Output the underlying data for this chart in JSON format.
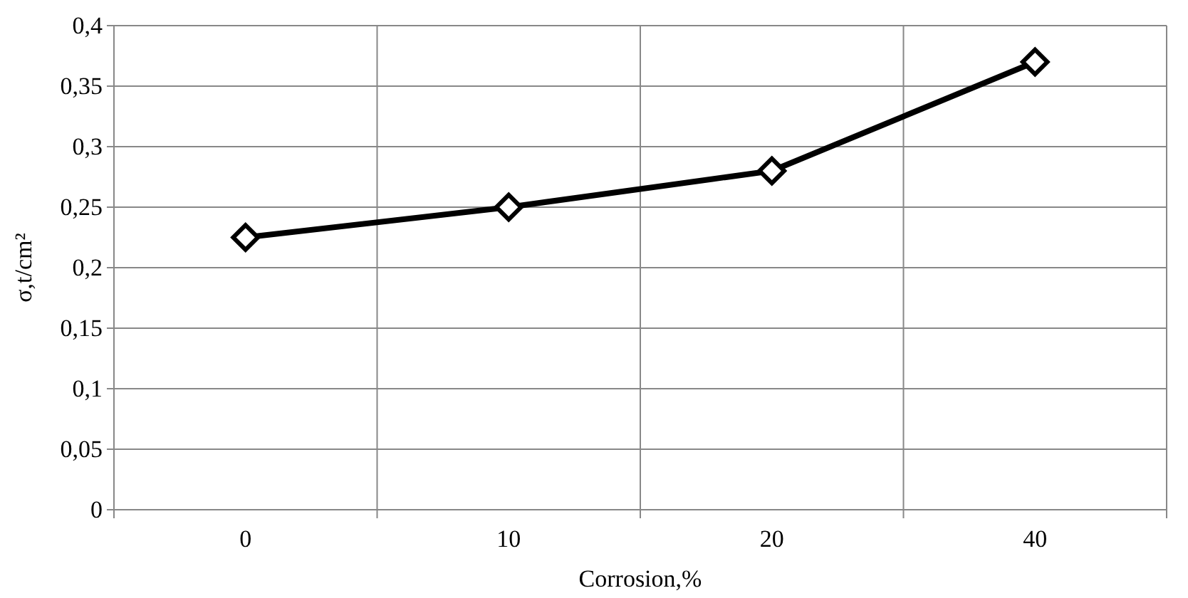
{
  "chart_data": {
    "type": "line",
    "xlabel": "Corrosion,%",
    "ylabel": "σ,t/cm²",
    "categories": [
      "0",
      "10",
      "20",
      "40"
    ],
    "series": [
      {
        "color": "#000000",
        "values": [
          0.225,
          0.25,
          0.28,
          0.37
        ]
      }
    ],
    "ylim": [
      0,
      0.4
    ],
    "yticks": [
      {
        "value": 0,
        "label": "0"
      },
      {
        "value": 0.05,
        "label": "0,05"
      },
      {
        "value": 0.1,
        "label": "0,1"
      },
      {
        "value": 0.15,
        "label": "0,15"
      },
      {
        "value": 0.2,
        "label": "0,2"
      },
      {
        "value": 0.25,
        "label": "0,25"
      },
      {
        "value": 0.3,
        "label": "0,3"
      },
      {
        "value": 0.35,
        "label": "0,35"
      },
      {
        "value": 0.4,
        "label": "0,4"
      }
    ],
    "grid": true,
    "marker": "diamond",
    "line_style": "solid"
  }
}
